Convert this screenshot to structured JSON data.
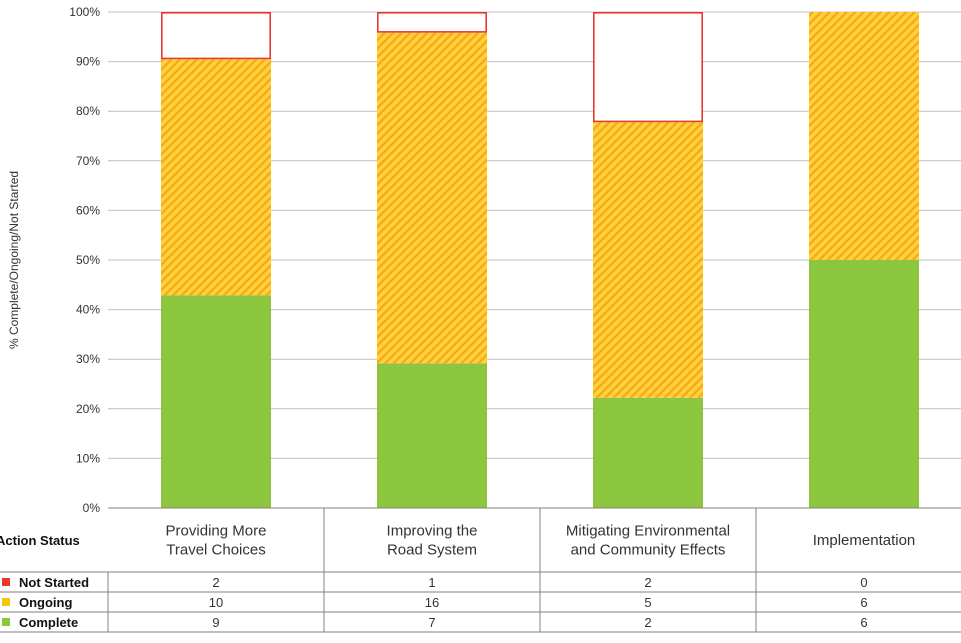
{
  "chart_data": {
    "type": "bar",
    "stacked": true,
    "percent_stacked": true,
    "ylabel": "% Complete/Ongoing/Not Started",
    "ylim": [
      0,
      100
    ],
    "yticks": [
      "0%",
      "10%",
      "20%",
      "30%",
      "40%",
      "50%",
      "60%",
      "70%",
      "80%",
      "90%",
      "100%"
    ],
    "grid": true,
    "categories": [
      [
        "Providing More",
        "Travel Choices"
      ],
      [
        "Improving the",
        "Road System"
      ],
      [
        "Mitigating Environmental",
        "and Community Effects"
      ],
      [
        "Implementation"
      ]
    ],
    "table_title": "Action Status",
    "series": [
      {
        "name": "Not Started",
        "values": [
          2,
          1,
          2,
          0
        ],
        "color": "#e8392b",
        "style": "outline"
      },
      {
        "name": "Ongoing",
        "values": [
          10,
          16,
          5,
          6
        ],
        "color": "#f5c518",
        "style": "hatched"
      },
      {
        "name": "Complete",
        "values": [
          9,
          7,
          2,
          6
        ],
        "color": "#8cc63f",
        "style": "solid"
      }
    ]
  }
}
